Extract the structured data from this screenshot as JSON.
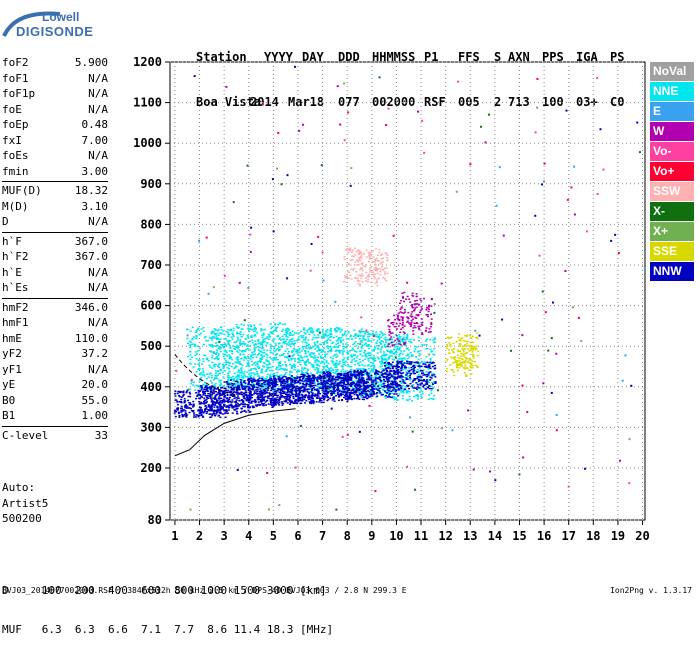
{
  "logo": {
    "line1": "Lowell",
    "line2": "DIGISONDE"
  },
  "header": {
    "labels": [
      "Station",
      "YYYY",
      "DAY",
      "DDD",
      "HHMMSS",
      "P1",
      "FFS",
      "S",
      "AXN",
      "PPS",
      "IGA",
      "PS"
    ],
    "values": [
      "Boa Vista",
      "2014",
      "Mar18",
      "077",
      "002000",
      "RSF",
      "005",
      "2",
      "713",
      "100",
      "03+",
      "C0"
    ]
  },
  "params": {
    "group1": [
      {
        "name": "foF2",
        "value": "5.900"
      },
      {
        "name": "foF1",
        "value": "N/A"
      },
      {
        "name": "foF1p",
        "value": "N/A"
      },
      {
        "name": "foE",
        "value": "N/A"
      },
      {
        "name": "foEp",
        "value": "0.48"
      },
      {
        "name": "fxI",
        "value": "7.00"
      },
      {
        "name": "foEs",
        "value": "N/A"
      },
      {
        "name": "fmin",
        "value": "3.00"
      }
    ],
    "group2": [
      {
        "name": "MUF(D)",
        "value": "18.32"
      },
      {
        "name": "M(D)",
        "value": "3.10"
      },
      {
        "name": "D",
        "value": "N/A"
      }
    ],
    "group3": [
      {
        "name": "h`F",
        "value": "367.0"
      },
      {
        "name": "h`F2",
        "value": "367.0"
      },
      {
        "name": "h`E",
        "value": "N/A"
      },
      {
        "name": "h`Es",
        "value": "N/A"
      }
    ],
    "group4": [
      {
        "name": "hmF2",
        "value": "346.0"
      },
      {
        "name": "hmF1",
        "value": "N/A"
      },
      {
        "name": "hmE",
        "value": "110.0"
      },
      {
        "name": "yF2",
        "value": "37.2"
      },
      {
        "name": "yF1",
        "value": "N/A"
      },
      {
        "name": "yE",
        "value": "20.0"
      },
      {
        "name": "B0",
        "value": "55.0"
      },
      {
        "name": "B1",
        "value": "1.00"
      }
    ],
    "group5": [
      {
        "name": "C-level",
        "value": "33"
      }
    ]
  },
  "auto": {
    "line1": "Auto:",
    "line2": "Artist5",
    "line3": "500200"
  },
  "legend": [
    {
      "label": "NoVal",
      "color": "#a0a0a0"
    },
    {
      "label": "NNE",
      "color": "#00e5ee"
    },
    {
      "label": "E",
      "color": "#3aa0f0"
    },
    {
      "label": "W",
      "color": "#b000b0"
    },
    {
      "label": "Vo-",
      "color": "#ff40a0"
    },
    {
      "label": "Vo+",
      "color": "#ff0030"
    },
    {
      "label": "SSW",
      "color": "#ffb0b0"
    },
    {
      "label": "X-",
      "color": "#107010"
    },
    {
      "label": "X+",
      "color": "#70b050"
    },
    {
      "label": "SSE",
      "color": "#d8d800"
    },
    {
      "label": "NNW",
      "color": "#0000c0"
    }
  ],
  "footer": {
    "d_row": "D     100  200  400  600  800 1000 1500 3000 [km]",
    "muf_row": "MUF   6.3  6.3  6.6  7.1  7.7  8.6 11.4 18.3 [MHz]",
    "file": "BVJ03_2014077002000.RSF / 384fx512h 50 kHz 2.5 km / DPS-4D BVJ03 003 / 2.8 N 299.3 E",
    "version": "Ion2Png v. 1.3.17"
  },
  "chart_data": {
    "type": "scatter",
    "xlabel": "",
    "ylabel": "",
    "xlim": [
      0.8,
      20.1
    ],
    "ylim": [
      80,
      1200
    ],
    "xticks": [
      "1",
      "2",
      "3",
      "4",
      "5",
      "6",
      "7",
      "8",
      "9",
      "10",
      "11",
      "12",
      "13",
      "14",
      "15",
      "16",
      "17",
      "18",
      "19",
      "20"
    ],
    "yticks": [
      "80",
      "200",
      "300",
      "400",
      "500",
      "600",
      "700",
      "800",
      "900",
      "1000",
      "1100",
      "1200"
    ],
    "grid": true,
    "legend_position": "right",
    "series": [
      {
        "name": "NNE",
        "points": [
          [
            2.5,
            470
          ],
          [
            3.5,
            475
          ],
          [
            4.5,
            480
          ],
          [
            5.5,
            470
          ],
          [
            6.5,
            465
          ],
          [
            7.5,
            470
          ],
          [
            8.5,
            460
          ],
          [
            9.5,
            455
          ],
          [
            10.5,
            445
          ]
        ]
      },
      {
        "name": "NNW",
        "points": [
          [
            2.0,
            360
          ],
          [
            3.0,
            370
          ],
          [
            4.0,
            385
          ],
          [
            5.0,
            390
          ],
          [
            6.0,
            395
          ],
          [
            7.0,
            400
          ],
          [
            8.0,
            405
          ],
          [
            9.0,
            410
          ],
          [
            10.5,
            430
          ]
        ]
      },
      {
        "name": "W",
        "points": [
          [
            10.5,
            590
          ],
          [
            11.0,
            575
          ],
          [
            10.0,
            540
          ]
        ]
      },
      {
        "name": "SSW",
        "points": [
          [
            8.2,
            700
          ],
          [
            8.8,
            695
          ],
          [
            9.2,
            700
          ]
        ]
      },
      {
        "name": "SSE",
        "points": [
          [
            12.4,
            480
          ],
          [
            12.7,
            470
          ],
          [
            12.9,
            490
          ]
        ]
      }
    ],
    "trace": {
      "name": "profile",
      "x": [
        1.0,
        1.6,
        2.2,
        3.0,
        4.0,
        5.0,
        5.9
      ],
      "y": [
        230,
        245,
        280,
        310,
        330,
        340,
        346
      ]
    }
  }
}
